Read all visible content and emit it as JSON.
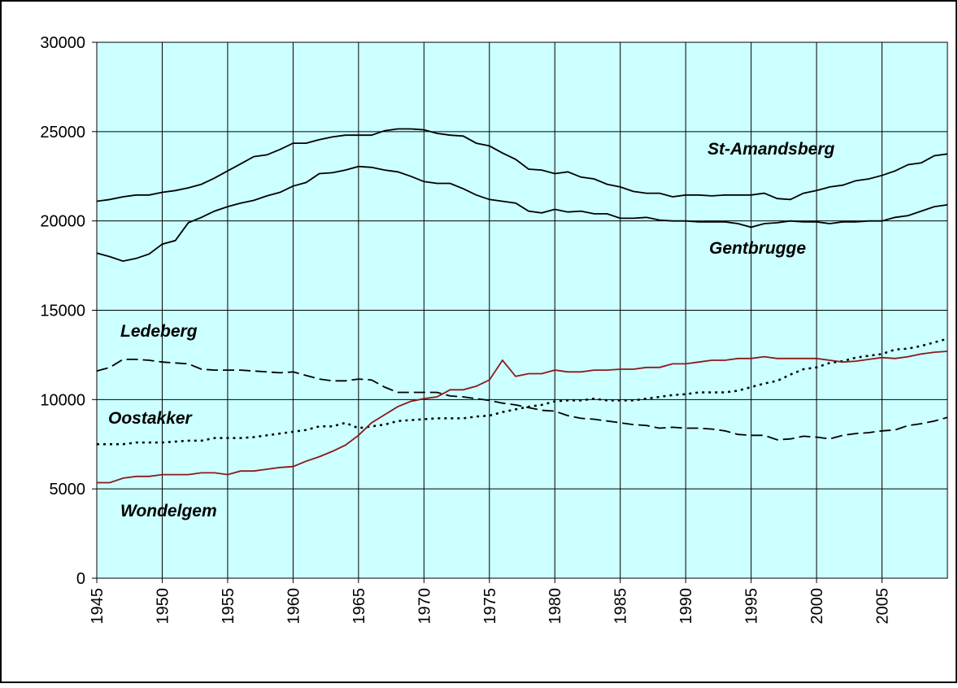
{
  "chart_data": {
    "type": "line",
    "x": [
      1945,
      1946,
      1947,
      1948,
      1949,
      1950,
      1951,
      1952,
      1953,
      1954,
      1955,
      1956,
      1957,
      1958,
      1959,
      1960,
      1961,
      1962,
      1963,
      1964,
      1965,
      1966,
      1967,
      1968,
      1969,
      1970,
      1971,
      1972,
      1973,
      1974,
      1975,
      1976,
      1977,
      1978,
      1979,
      1980,
      1981,
      1982,
      1983,
      1984,
      1985,
      1986,
      1987,
      1988,
      1989,
      1990,
      1991,
      1992,
      1993,
      1994,
      1995,
      1996,
      1997,
      1998,
      1999,
      2000,
      2001,
      2002,
      2003,
      2004,
      2005,
      2006,
      2007,
      2008,
      2009,
      2010
    ],
    "xlim": [
      1945,
      2010
    ],
    "xticks": [
      1945,
      1950,
      1955,
      1960,
      1965,
      1970,
      1975,
      1980,
      1985,
      1990,
      1995,
      2000,
      2005
    ],
    "ylim": [
      0,
      30000
    ],
    "yticks": [
      0,
      5000,
      10000,
      15000,
      20000,
      25000,
      30000
    ],
    "grid": true,
    "background": "#ccffff",
    "series": [
      {
        "name": "St-Amandsberg",
        "color": "#000000",
        "style": "solid",
        "values": [
          21100,
          21200,
          21350,
          21450,
          21450,
          21600,
          21700,
          21850,
          22050,
          22400,
          22800,
          23200,
          23600,
          23700,
          24000,
          24350,
          24350,
          24550,
          24700,
          24800,
          24800,
          24800,
          25050,
          25150,
          25150,
          25100,
          24900,
          24800,
          24750,
          24350,
          24200,
          23800,
          23450,
          22900,
          22850,
          22650,
          22750,
          22450,
          22350,
          22050,
          21900,
          21650,
          21550,
          21550,
          21350,
          21450,
          21450,
          21400,
          21450,
          21450,
          21450,
          21550,
          21250,
          21200,
          21550,
          21700,
          21900,
          22000,
          22250,
          22350,
          22550,
          22800,
          23150,
          23250,
          23650,
          23750
        ]
      },
      {
        "name": "Gentbrugge",
        "color": "#000000",
        "style": "solid",
        "values": [
          18200,
          18000,
          17750,
          17900,
          18150,
          18700,
          18900,
          19900,
          20200,
          20550,
          20800,
          21000,
          21150,
          21400,
          21600,
          21950,
          22150,
          22650,
          22700,
          22850,
          23050,
          23000,
          22850,
          22750,
          22500,
          22200,
          22100,
          22100,
          21800,
          21450,
          21200,
          21100,
          21000,
          20550,
          20450,
          20650,
          20500,
          20550,
          20400,
          20400,
          20150,
          20150,
          20200,
          20050,
          20000,
          20000,
          19950,
          19950,
          19950,
          19850,
          19650,
          19850,
          19900,
          20000,
          19950,
          19950,
          19850,
          19950,
          19950,
          20000,
          20000,
          20200,
          20300,
          20550,
          20800,
          20900
        ]
      },
      {
        "name": "Ledeberg",
        "color": "#000000",
        "style": "dashed",
        "values": [
          11600,
          11800,
          12250,
          12250,
          12200,
          12100,
          12050,
          12000,
          11700,
          11650,
          11650,
          11650,
          11600,
          11550,
          11500,
          11550,
          11350,
          11150,
          11050,
          11050,
          11150,
          11100,
          10700,
          10400,
          10400,
          10400,
          10400,
          10200,
          10150,
          10050,
          9950,
          9800,
          9700,
          9550,
          9400,
          9350,
          9100,
          8950,
          8900,
          8800,
          8700,
          8600,
          8550,
          8400,
          8450,
          8400,
          8400,
          8350,
          8250,
          8050,
          8000,
          8000,
          7750,
          7800,
          7950,
          7900,
          7800,
          8000,
          8100,
          8150,
          8250,
          8300,
          8550,
          8650,
          8800,
          9000
        ]
      },
      {
        "name": "Oostakker",
        "color": "#000000",
        "style": "dotted",
        "values": [
          7500,
          7500,
          7500,
          7600,
          7600,
          7600,
          7650,
          7700,
          7700,
          7850,
          7850,
          7850,
          7900,
          8000,
          8100,
          8200,
          8300,
          8500,
          8500,
          8700,
          8400,
          8500,
          8600,
          8800,
          8850,
          8900,
          8950,
          8950,
          8950,
          9050,
          9100,
          9300,
          9450,
          9600,
          9700,
          9900,
          9950,
          9950,
          10050,
          9950,
          9950,
          9950,
          10050,
          10150,
          10250,
          10300,
          10400,
          10400,
          10400,
          10500,
          10700,
          10900,
          11050,
          11400,
          11700,
          11800,
          12050,
          12150,
          12350,
          12450,
          12550,
          12800,
          12850,
          13000,
          13200,
          13400
        ]
      },
      {
        "name": "Wondelgem",
        "color": "#8b1a1a",
        "style": "solid",
        "values": [
          5350,
          5350,
          5600,
          5700,
          5700,
          5800,
          5800,
          5800,
          5900,
          5900,
          5800,
          6000,
          6000,
          6100,
          6200,
          6250,
          6550,
          6800,
          7100,
          7450,
          8000,
          8700,
          9150,
          9600,
          9900,
          10050,
          10150,
          10550,
          10550,
          10750,
          11100,
          12200,
          11300,
          11450,
          11450,
          11650,
          11550,
          11550,
          11650,
          11650,
          11700,
          11700,
          11800,
          11800,
          12000,
          12000,
          12100,
          12200,
          12200,
          12300,
          12300,
          12400,
          12300,
          12300,
          12300,
          12300,
          12200,
          12100,
          12150,
          12250,
          12350,
          12300,
          12400,
          12550,
          12650,
          12700
        ]
      }
    ]
  }
}
